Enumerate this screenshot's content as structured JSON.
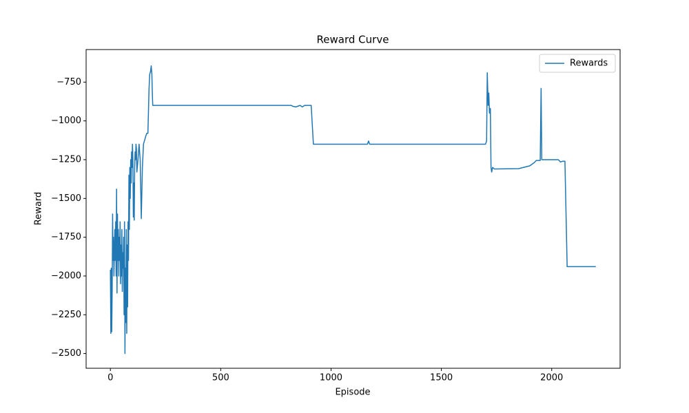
{
  "chart_data": {
    "type": "line",
    "title": "Reward Curve",
    "x_label": "Episode",
    "y_label": "Reward",
    "xlim": [
      -110,
      2310
    ],
    "ylim": [
      -2595,
      -540
    ],
    "xticks": [
      0,
      500,
      1000,
      1500,
      2000
    ],
    "yticks": [
      {
        "value": -2500,
        "label": "−2500"
      },
      {
        "value": -2250,
        "label": "−2250"
      },
      {
        "value": -2000,
        "label": "−2000"
      },
      {
        "value": -1750,
        "label": "−1750"
      },
      {
        "value": -1500,
        "label": "−1500"
      },
      {
        "value": -1250,
        "label": "−1250"
      },
      {
        "value": -1000,
        "label": "−1000"
      },
      {
        "value": -750,
        "label": "−750"
      }
    ],
    "legend": "upper right",
    "x": [
      0,
      2,
      4,
      6,
      8,
      10,
      12,
      14,
      16,
      18,
      20,
      22,
      24,
      26,
      28,
      30,
      32,
      34,
      36,
      38,
      40,
      42,
      44,
      46,
      48,
      50,
      52,
      54,
      56,
      58,
      60,
      62,
      64,
      66,
      68,
      70,
      72,
      74,
      76,
      78,
      80,
      82,
      84,
      86,
      88,
      90,
      92,
      94,
      96,
      98,
      100,
      102,
      104,
      106,
      108,
      110,
      112,
      114,
      116,
      118,
      120,
      125,
      130,
      135,
      140,
      145,
      150,
      160,
      165,
      170,
      175,
      178,
      182,
      185,
      188,
      190,
      192,
      600,
      820,
      825,
      840,
      860,
      870,
      880,
      910,
      920,
      1165,
      1170,
      1175,
      1700,
      1705,
      1708,
      1712,
      1715,
      1718,
      1722,
      1725,
      1728,
      1732,
      1740,
      1850,
      1900,
      1920,
      1930,
      1948,
      1952,
      1955,
      2030,
      2040,
      2050,
      2060,
      2070,
      2200
    ],
    "series": [
      {
        "name": "Rewards",
        "color": "#1f77b4",
        "values": [
          -1960,
          -2370,
          -1950,
          -2360,
          -2100,
          -1600,
          -1900,
          -1750,
          -2000,
          -1850,
          -1700,
          -1900,
          -1650,
          -2000,
          -1440,
          -2110,
          -1600,
          -1900,
          -1700,
          -2000,
          -1750,
          -1900,
          -1650,
          -2050,
          -1800,
          -2000,
          -1700,
          -2100,
          -1850,
          -1950,
          -1750,
          -2250,
          -1650,
          -2500,
          -1950,
          -2300,
          -1700,
          -2370,
          -1800,
          -2200,
          -1650,
          -1900,
          -1350,
          -1700,
          -1300,
          -1500,
          -1250,
          -1400,
          -1200,
          -1300,
          -1150,
          -1250,
          -1620,
          -1400,
          -1640,
          -1300,
          -1200,
          -1250,
          -1150,
          -1180,
          -1330,
          -1250,
          -1150,
          -1250,
          -1630,
          -1300,
          -1150,
          -1100,
          -1080,
          -1080,
          -800,
          -700,
          -680,
          -645,
          -700,
          -820,
          -900,
          -900,
          -900,
          -905,
          -910,
          -900,
          -910,
          -900,
          -900,
          -1150,
          -1150,
          -1130,
          -1150,
          -1150,
          -1130,
          -690,
          -900,
          -820,
          -950,
          -920,
          -1300,
          -1330,
          -1300,
          -1310,
          -1308,
          -1290,
          -1270,
          -1255,
          -1255,
          -790,
          -1250,
          -1250,
          -1265,
          -1260,
          -1260,
          -1940,
          -1940
        ]
      }
    ]
  }
}
